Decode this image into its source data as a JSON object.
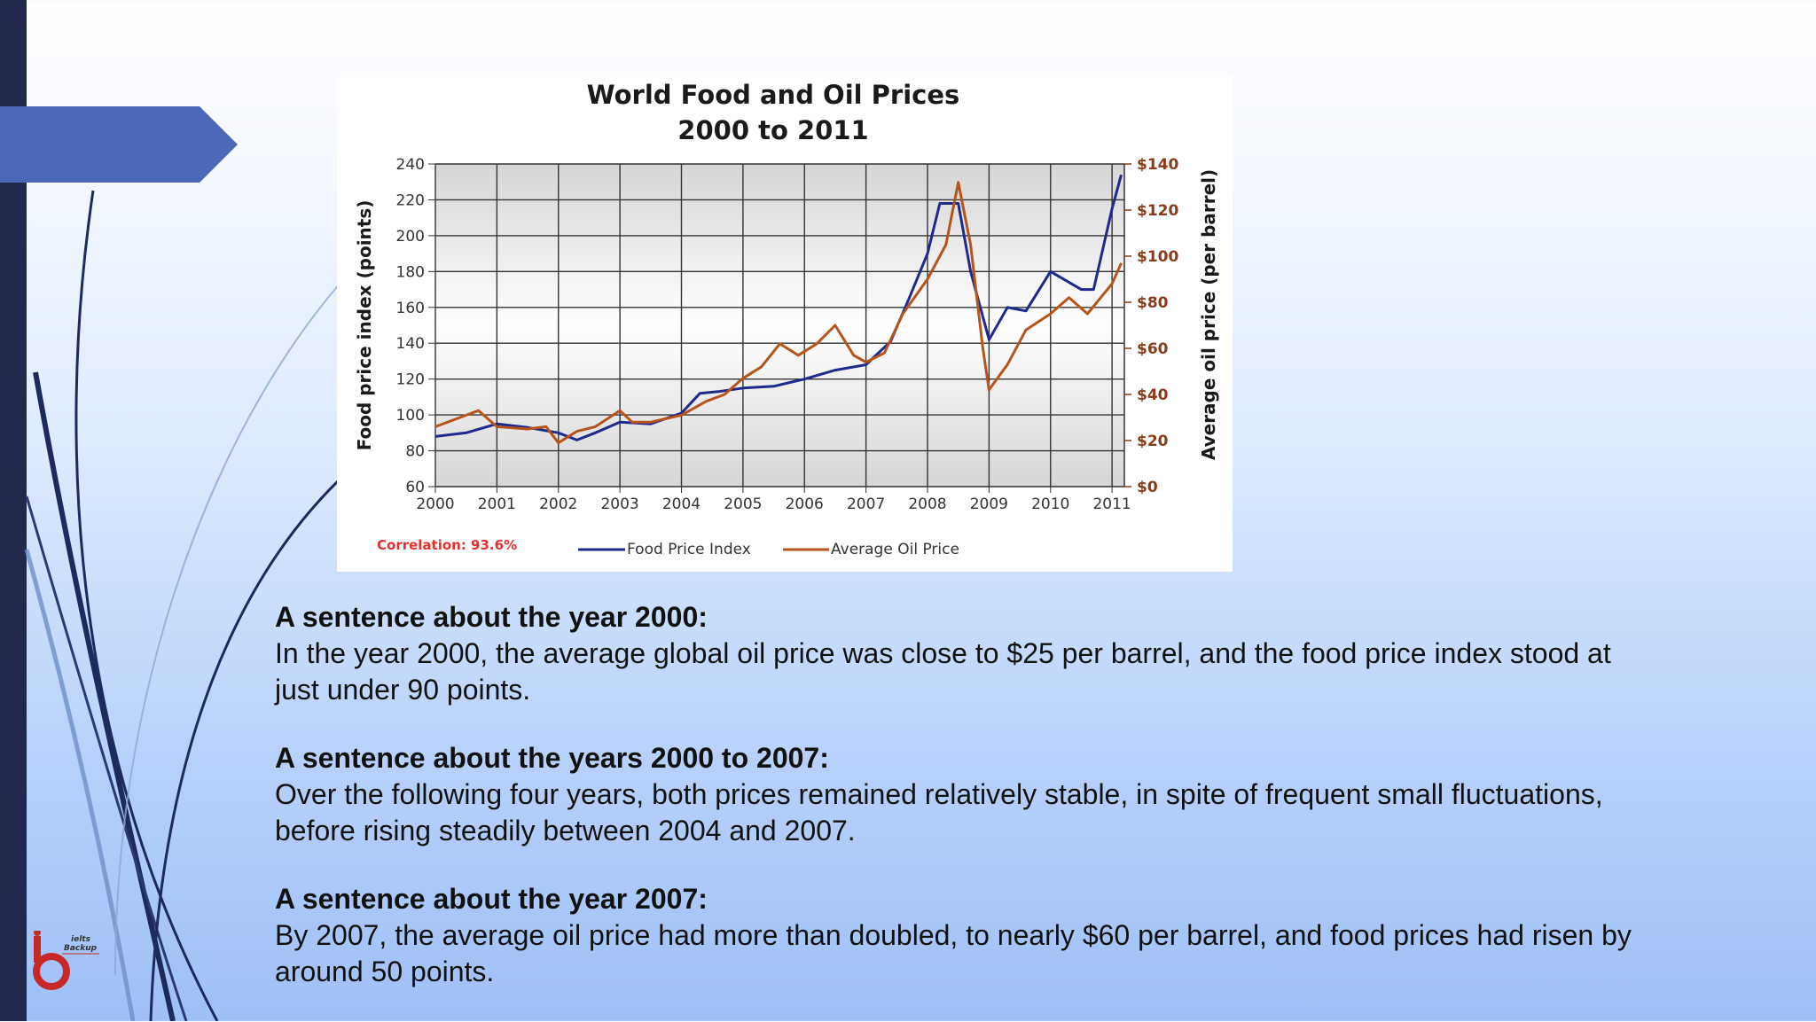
{
  "chart_data": {
    "type": "line",
    "title": "World Food and Oil Prices",
    "subtitle": "2000 to 2011",
    "ylabel": "Food price index (points)",
    "y2label": "Average oil price (per barrel)",
    "xlim": [
      2000,
      2011.2
    ],
    "ylim": [
      60,
      240
    ],
    "y2lim": [
      0,
      140
    ],
    "x_ticks": [
      "2000",
      "2001",
      "2002",
      "2003",
      "2004",
      "2005",
      "2006",
      "2007",
      "2008",
      "2009",
      "2010",
      "2011"
    ],
    "y_ticks": [
      "60",
      "80",
      "100",
      "120",
      "140",
      "160",
      "180",
      "200",
      "220",
      "240"
    ],
    "y2_ticks": [
      "$0",
      "$20",
      "$40",
      "$60",
      "$80",
      "$100",
      "$120",
      "$140"
    ],
    "grid": true,
    "legend": "bottom",
    "annotation": "Correlation: 93.6%",
    "series": [
      {
        "name": "Food Price Index",
        "axis": "left",
        "color": "#1e2a8c",
        "x": [
          2000,
          2000.5,
          2001,
          2001.5,
          2002,
          2002.3,
          2002.6,
          2003,
          2003.5,
          2004,
          2004.3,
          2004.6,
          2005,
          2005.5,
          2006,
          2006.5,
          2007,
          2007.4,
          2007.7,
          2008,
          2008.2,
          2008.5,
          2008.7,
          2009,
          2009.3,
          2009.6,
          2010,
          2010.5,
          2010.7,
          2011,
          2011.15
        ],
        "y": [
          88,
          90,
          95,
          93,
          90,
          86,
          90,
          96,
          95,
          101,
          112,
          113,
          115,
          116,
          120,
          125,
          128,
          141,
          165,
          190,
          218,
          218,
          180,
          142,
          160,
          158,
          180,
          170,
          170,
          215,
          234
        ]
      },
      {
        "name": "Average Oil Price",
        "axis": "right",
        "color": "#b5541d",
        "x": [
          2000,
          2000.3,
          2000.7,
          2001,
          2001.5,
          2001.8,
          2002,
          2002.3,
          2002.6,
          2003,
          2003.2,
          2003.5,
          2004,
          2004.4,
          2004.7,
          2005,
          2005.3,
          2005.6,
          2005.9,
          2006.2,
          2006.5,
          2006.8,
          2007,
          2007.3,
          2007.6,
          2008,
          2008.3,
          2008.5,
          2008.7,
          2008.9,
          2009,
          2009.3,
          2009.6,
          2010,
          2010.3,
          2010.6,
          2011,
          2011.15
        ],
        "y": [
          26,
          29,
          33,
          26,
          25,
          26,
          19,
          24,
          26,
          33,
          28,
          28,
          31,
          37,
          40,
          47,
          52,
          62,
          57,
          62,
          70,
          57,
          54,
          58,
          75,
          90,
          105,
          132,
          105,
          60,
          42,
          53,
          68,
          75,
          82,
          75,
          88,
          97
        ]
      }
    ]
  },
  "slide": {
    "sections": [
      {
        "heading": "A sentence about the year 2000:",
        "body": "In the year 2000, the average global oil price was close to $25 per barrel, and the food price index stood at just under 90 points."
      },
      {
        "heading": "A sentence about the years 2000 to 2007:",
        "body": "Over the following four years, both prices remained relatively stable, in spite of frequent small fluctuations, before rising steadily between 2004 and 2007."
      },
      {
        "heading": "A sentence about the year 2007:",
        "body": "By 2007, the average oil price had more than doubled, to nearly $60 per barrel, and food prices had risen by around 50 points."
      }
    ]
  },
  "logo": {
    "small_text": "ielts",
    "brand_text": "Backup"
  },
  "colors": {
    "sidebar": "#23284f",
    "arrow_tab": "#4a67b8",
    "food_line": "#1e2a8c",
    "oil_line": "#b5541d",
    "correlation": "#e53030"
  }
}
